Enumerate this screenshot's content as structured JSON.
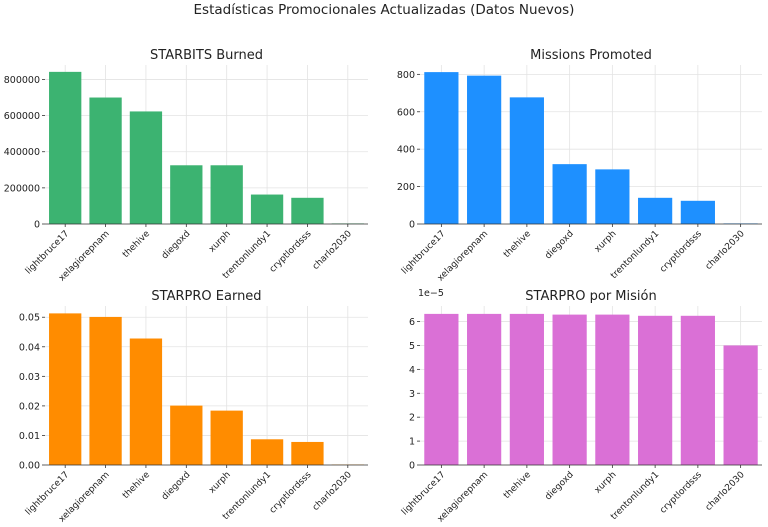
{
  "suptitle": "Estadísticas Promocionales Actualizadas (Datos Nuevos)",
  "chart_data": [
    {
      "type": "bar",
      "title": "STARBITS Burned",
      "categories": [
        "lightbruce17",
        "xelagiorepnam",
        "thehive",
        "diegoxd",
        "xurph",
        "trentonlundy1",
        "cryptlordsss",
        "charlo2030"
      ],
      "values": [
        842000,
        700000,
        623000,
        325000,
        325000,
        163000,
        145000,
        3000
      ],
      "ylim": [
        0,
        880000
      ],
      "yticks": [
        0,
        200000,
        400000,
        600000,
        800000
      ],
      "ytick_labels": [
        "0",
        "200000",
        "400000",
        "600000",
        "800000"
      ],
      "color": "#3cb371",
      "grid": true
    },
    {
      "type": "bar",
      "title": "Missions Promoted",
      "categories": [
        "lightbruce17",
        "xelagiorepnam",
        "thehive",
        "diegoxd",
        "xurph",
        "trentonlundy1",
        "cryptlordsss",
        "charlo2030"
      ],
      "values": [
        812,
        793,
        677,
        320,
        292,
        140,
        124,
        3
      ],
      "ylim": [
        0,
        850
      ],
      "yticks": [
        0,
        200,
        400,
        600,
        800
      ],
      "ytick_labels": [
        "0",
        "200",
        "400",
        "600",
        "800"
      ],
      "color": "#1e90ff",
      "grid": true
    },
    {
      "type": "bar",
      "title": "STARPRO Earned",
      "categories": [
        "lightbruce17",
        "xelagiorepnam",
        "thehive",
        "diegoxd",
        "xurph",
        "trentonlundy1",
        "cryptlordsss",
        "charlo2030"
      ],
      "values": [
        0.0513,
        0.0501,
        0.0428,
        0.0201,
        0.0184,
        0.0087,
        0.0078,
        0.00015
      ],
      "ylim": [
        0,
        0.0538
      ],
      "yticks": [
        0,
        0.01,
        0.02,
        0.03,
        0.04,
        0.05
      ],
      "ytick_labels": [
        "0.00",
        "0.01",
        "0.02",
        "0.03",
        "0.04",
        "0.05"
      ],
      "color": "#ff8c00",
      "grid": true
    },
    {
      "type": "bar",
      "title": "STARPRO por Misión",
      "categories": [
        "lightbruce17",
        "xelagiorepnam",
        "thehive",
        "diegoxd",
        "xurph",
        "trentonlundy1",
        "cryptlordsss",
        "charlo2030"
      ],
      "values": [
        6.32e-05,
        6.32e-05,
        6.32e-05,
        6.29e-05,
        6.29e-05,
        6.24e-05,
        6.24e-05,
        5e-05
      ],
      "ylim": [
        0,
        6.65e-05
      ],
      "yticks": [
        0,
        1e-05,
        2e-05,
        3e-05,
        4e-05,
        5e-05,
        6e-05
      ],
      "ytick_labels": [
        "0",
        "1",
        "2",
        "3",
        "4",
        "5",
        "6"
      ],
      "offset_label": "1e−5",
      "color": "#da70d6",
      "grid": true
    }
  ]
}
